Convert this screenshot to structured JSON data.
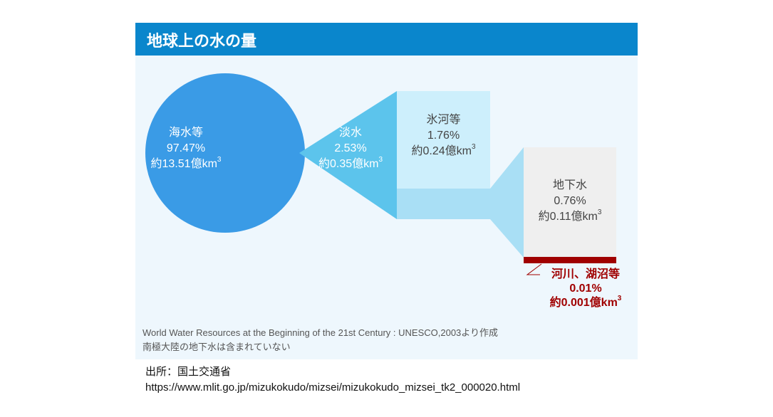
{
  "header": {
    "title": "地球上の水の量"
  },
  "nodes": [
    {
      "name": "海水等",
      "share": "97.47%",
      "volume": "約13.51億km",
      "exponent": "3"
    },
    {
      "name": "淡水",
      "share": "2.53%",
      "volume": "約0.35億km",
      "exponent": "3"
    },
    {
      "name": "氷河等",
      "share": "1.76%",
      "volume": "約0.24億km",
      "exponent": "3"
    },
    {
      "name": "地下水",
      "share": "0.76%",
      "volume": "約0.11億km",
      "exponent": "3"
    },
    {
      "name": "河川、湖沼等",
      "share": "0.01%",
      "volume": "約0.001億km",
      "exponent": "3"
    }
  ],
  "notes": [
    "World Water Resources at the Beginning of the 21st Century : UNESCO,2003より作成",
    "南極大陸の地下水は含まれていない"
  ],
  "source": {
    "label": "出所：国土交通省",
    "url": "https://www.mlit.go.jp/mizukokudo/mizsei/mizukokudo_mizsei_tk2_000020.html"
  }
}
